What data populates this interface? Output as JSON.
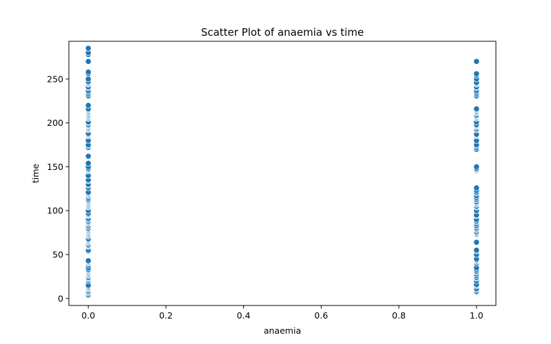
{
  "chart_data": {
    "type": "scatter",
    "title": "Scatter Plot of anaemia vs time",
    "xlabel": "anaemia",
    "ylabel": "time",
    "xlim": [
      -0.05,
      1.05
    ],
    "ylim": [
      -8,
      293
    ],
    "xticks": [
      0.0,
      0.2,
      0.4,
      0.6,
      0.8,
      1.0
    ],
    "xtick_labels": [
      "0.0",
      "0.2",
      "0.4",
      "0.6",
      "0.8",
      "1.0"
    ],
    "yticks": [
      0,
      50,
      100,
      150,
      200,
      250
    ],
    "ytick_labels": [
      "0",
      "50",
      "100",
      "150",
      "200",
      "250"
    ],
    "grid": false,
    "legend": "none",
    "marker_color": "#1f77b4",
    "series": [
      {
        "x": 0,
        "y": [
          4,
          6,
          7,
          8,
          10,
          11,
          12,
          13,
          14,
          15,
          20,
          22,
          23,
          24,
          26,
          27,
          28,
          29,
          30,
          31,
          32,
          33,
          35,
          38,
          40,
          41,
          42,
          43,
          54,
          55,
          59,
          60,
          61,
          63,
          64,
          65,
          66,
          67,
          68,
          71,
          72,
          73,
          74,
          75,
          76,
          77,
          78,
          79,
          80,
          82,
          83,
          85,
          86,
          87,
          88,
          90,
          91,
          94,
          95,
          96,
          97,
          100,
          104,
          105,
          106,
          107,
          108,
          109,
          110,
          111,
          112,
          113,
          115,
          117,
          118,
          119,
          120,
          121,
          126,
          129,
          130,
          134,
          135,
          140,
          145,
          146,
          147,
          148,
          150,
          154,
          162,
          172,
          174,
          175,
          180,
          185,
          186,
          187,
          188,
          192,
          193,
          194,
          195,
          196,
          197,
          198,
          200,
          201,
          205,
          206,
          207,
          208,
          209,
          210,
          211,
          212,
          213,
          214,
          215,
          216,
          220,
          230,
          231,
          233,
          235,
          237,
          240,
          241,
          244,
          245,
          246,
          247,
          250,
          256,
          258,
          270,
          278,
          280,
          285
        ]
      },
      {
        "x": 1,
        "y": [
          7,
          8,
          10,
          11,
          14,
          15,
          16,
          20,
          23,
          24,
          26,
          28,
          30,
          31,
          33,
          35,
          40,
          42,
          43,
          44,
          45,
          50,
          54,
          55,
          64,
          73,
          74,
          75,
          76,
          78,
          79,
          80,
          82,
          83,
          85,
          87,
          88,
          90,
          94,
          95,
          100,
          104,
          105,
          107,
          108,
          109,
          110,
          112,
          113,
          115,
          117,
          120,
          121,
          123,
          126,
          146,
          147,
          148,
          150,
          170,
          172,
          174,
          175,
          180,
          185,
          186,
          187,
          192,
          193,
          195,
          196,
          197,
          198,
          201,
          205,
          206,
          207,
          208,
          209,
          211,
          212,
          213,
          214,
          215,
          216,
          230,
          231,
          233,
          235,
          237,
          240,
          241,
          244,
          245,
          246,
          250,
          254,
          256,
          270
        ]
      }
    ]
  }
}
